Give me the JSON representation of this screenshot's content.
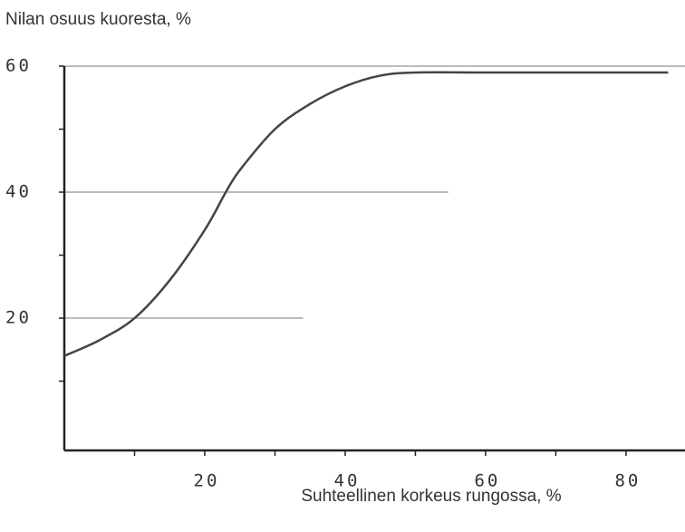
{
  "chart_data": {
    "type": "line",
    "title": "Nilan osuus kuoresta, %",
    "x_label": "Suhteellinen korkeus rungossa, %",
    "x": [
      0,
      5,
      10,
      15,
      20,
      23,
      25,
      30,
      35,
      40,
      45,
      50,
      60,
      70,
      80,
      86
    ],
    "series": [
      {
        "color": "#444",
        "values": [
          14,
          16.5,
          20,
          26,
          34,
          40,
          43.5,
          50,
          54,
          56.8,
          58.5,
          59,
          59,
          59,
          59,
          59
        ]
      }
    ],
    "xlim": [
      0,
      88.4
    ],
    "ylim": [
      -1,
      60
    ],
    "xticks": [
      20,
      40,
      60,
      80
    ],
    "xminor_ticks": [
      10,
      30,
      50,
      70
    ],
    "yticks": [
      20,
      40,
      60
    ],
    "yminor_ticks": [
      10,
      30,
      50
    ],
    "grid_lines": [
      {
        "y": 20,
        "x_end": 34
      },
      {
        "y": 40,
        "x_end": 54.7
      },
      {
        "y": 60,
        "x_end": 88.4
      }
    ]
  }
}
